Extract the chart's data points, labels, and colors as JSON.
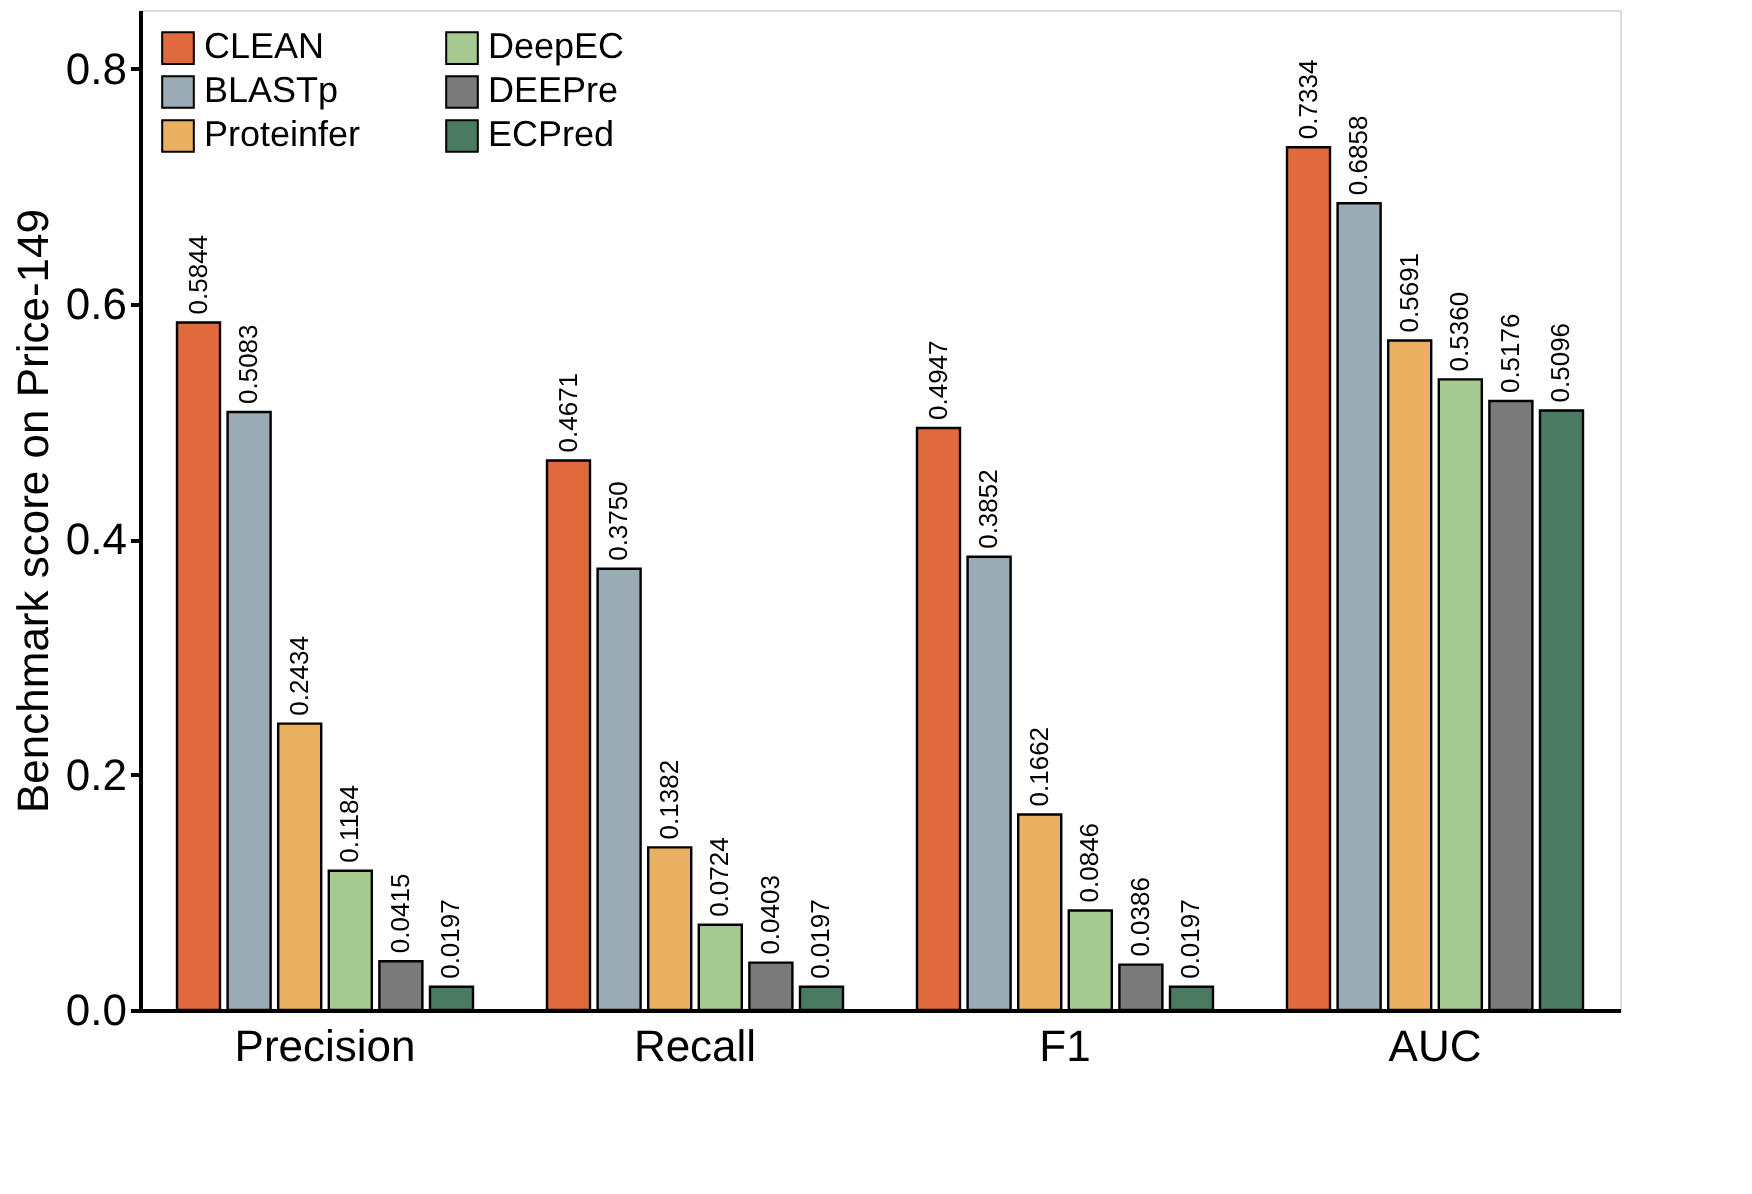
{
  "chart_data": {
    "type": "bar",
    "ylabel": "Benchmark score on Price-149",
    "categories": [
      "Precision",
      "Recall",
      "F1",
      "AUC"
    ],
    "series": [
      {
        "name": "CLEAN",
        "color": "#e06a3e",
        "values": [
          0.5844,
          0.4671,
          0.4947,
          0.7334
        ],
        "value_labels": [
          "0.5844",
          "0.4671",
          "0.4947",
          "0.7334"
        ]
      },
      {
        "name": "BLASTp",
        "color": "#9aabb5",
        "values": [
          0.5083,
          0.375,
          0.3852,
          0.6858
        ],
        "value_labels": [
          "0.5083",
          "0.3750",
          "0.3852",
          "0.6858"
        ]
      },
      {
        "name": "Proteinfer",
        "color": "#e8b060",
        "values": [
          0.2434,
          0.1382,
          0.1662,
          0.5691
        ],
        "value_labels": [
          "0.2434",
          "0.1382",
          "0.1662",
          "0.5691"
        ]
      },
      {
        "name": "DeepEC",
        "color": "#a5c98e",
        "values": [
          0.1184,
          0.0724,
          0.0846,
          0.536
        ],
        "value_labels": [
          "0.1184",
          "0.0724",
          "0.0846",
          "0.5360"
        ]
      },
      {
        "name": "DEEPre",
        "color": "#7a7a7a",
        "values": [
          0.0415,
          0.0403,
          0.0386,
          0.5176
        ],
        "value_labels": [
          "0.0415",
          "0.0403",
          "0.0386",
          "0.5176"
        ]
      },
      {
        "name": "ECPred",
        "color": "#4a7a62",
        "values": [
          0.0197,
          0.0197,
          0.0197,
          0.5096
        ],
        "value_labels": [
          "0.0197",
          "0.0197",
          "0.0197",
          "0.5096"
        ]
      }
    ],
    "ylim": [
      0,
      0.85
    ],
    "yticks": [
      {
        "value": 0,
        "label": "0.0"
      },
      0.2,
      0.4,
      0.6,
      {
        "value": 0.8,
        "label": "0.8"
      }
    ],
    "grid": false,
    "legend": "top left"
  }
}
